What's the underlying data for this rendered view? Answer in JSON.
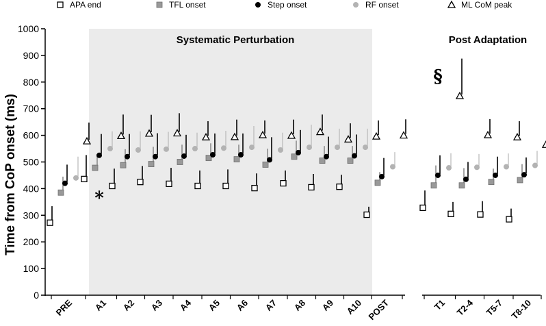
{
  "chart_data": {
    "type": "scatter",
    "ylabel": "Time from CoP onset (ms)",
    "ylim": [
      0,
      1000
    ],
    "yticks": [
      0,
      100,
      200,
      300,
      400,
      500,
      600,
      700,
      800,
      900,
      1000
    ],
    "categories": [
      "PRE",
      "A1",
      "A2",
      "A3",
      "A4",
      "A5",
      "A6",
      "A7",
      "A8",
      "A9",
      "A10",
      "POST",
      "T1",
      "T2-4",
      "T5-7",
      "T8-10"
    ],
    "sections": [
      {
        "title": "Systematic Perturbation",
        "shaded": true
      },
      {
        "title": "Post Adaptation",
        "shaded": false
      }
    ],
    "legend_position": "top",
    "series": [
      {
        "name": "APA end",
        "marker": "open-square",
        "color": "#000000",
        "values": [
          272,
          436,
          410,
          425,
          418,
          410,
          410,
          402,
          420,
          405,
          407,
          302,
          328,
          305,
          303,
          285
        ],
        "errors": [
          62,
          90,
          65,
          60,
          60,
          58,
          62,
          55,
          48,
          50,
          45,
          30,
          65,
          45,
          50,
          40
        ]
      },
      {
        "name": "TFL onset",
        "marker": "filled-square",
        "color": "#999999",
        "values": [
          385,
          478,
          488,
          492,
          500,
          515,
          510,
          490,
          520,
          505,
          505,
          422,
          412,
          412,
          425,
          432
        ],
        "errors": [
          60,
          50,
          60,
          65,
          65,
          55,
          55,
          60,
          60,
          55,
          55,
          40,
          75,
          65,
          50,
          60
        ]
      },
      {
        "name": "Step onset",
        "marker": "filled-circle",
        "color": "#000000",
        "values": [
          420,
          525,
          520,
          520,
          522,
          527,
          527,
          508,
          535,
          520,
          523,
          445,
          450,
          435,
          450,
          452
        ],
        "errors": [
          70,
          80,
          85,
          88,
          80,
          80,
          80,
          85,
          85,
          75,
          80,
          70,
          75,
          65,
          70,
          65
        ]
      },
      {
        "name": "RF onset",
        "marker": "filled-circle",
        "color": "#b3b3b3",
        "values": [
          440,
          550,
          545,
          548,
          550,
          552,
          555,
          545,
          555,
          555,
          555,
          482,
          478,
          480,
          482,
          487
        ],
        "errors": [
          80,
          65,
          70,
          65,
          60,
          65,
          80,
          65,
          85,
          70,
          70,
          55,
          55,
          50,
          50,
          55
        ]
      },
      {
        "name": "ML CoM peak",
        "marker": "open-triangle",
        "color": "#000000",
        "values": [
          578,
          598,
          607,
          608,
          593,
          594,
          601,
          599,
          613,
          585,
          596,
          600,
          748,
          601,
          593,
          565
        ],
        "errors": [
          70,
          80,
          70,
          75,
          60,
          65,
          55,
          60,
          65,
          60,
          60,
          60,
          140,
          60,
          60,
          60
        ]
      }
    ],
    "annotations": [
      {
        "text": "*",
        "category": "A1"
      },
      {
        "text": "§",
        "category": "T1"
      }
    ]
  },
  "icons": {
    "legend": [
      "open-square-icon",
      "gray-square-icon",
      "black-circle-icon",
      "gray-circle-icon",
      "open-triangle-icon"
    ]
  }
}
